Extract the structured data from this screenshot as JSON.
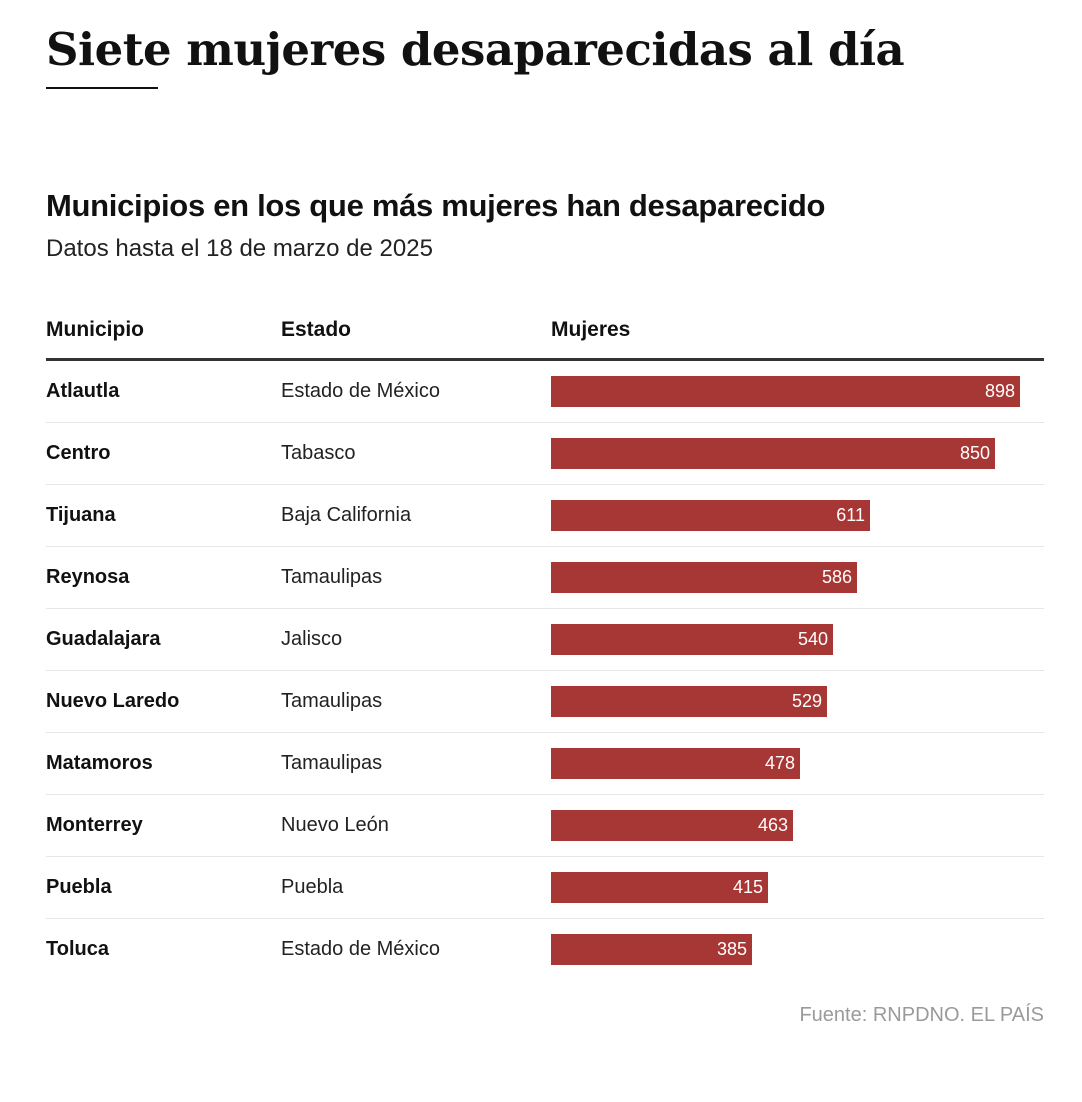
{
  "headline": "Siete mujeres desaparecidas al día",
  "colors": {
    "bar": "#a73735",
    "bar_label": "#ffffff",
    "source": "#9a9a9a",
    "header_rule": "#333333"
  },
  "source": "Fuente: RNPDNO. EL PAÍS",
  "chart_data": {
    "type": "bar",
    "orientation": "horizontal",
    "title": "Municipios en los que más mujeres han desaparecido",
    "subtitle": "Datos hasta el 18 de marzo de 2025",
    "columns": [
      "Municipio",
      "Estado",
      "Mujeres"
    ],
    "categories": [
      "Atlautla",
      "Centro",
      "Tijuana",
      "Reynosa",
      "Guadalajara",
      "Nuevo Laredo",
      "Matamoros",
      "Monterrey",
      "Puebla",
      "Toluca"
    ],
    "estados": [
      "Estado de México",
      "Tabasco",
      "Baja California",
      "Tamaulipas",
      "Jalisco",
      "Tamaulipas",
      "Tamaulipas",
      "Nuevo León",
      "Puebla",
      "Estado de México"
    ],
    "values": [
      898,
      850,
      611,
      586,
      540,
      529,
      478,
      463,
      415,
      385
    ],
    "xlim": [
      0,
      958
    ],
    "grid": false,
    "legend": "none"
  }
}
